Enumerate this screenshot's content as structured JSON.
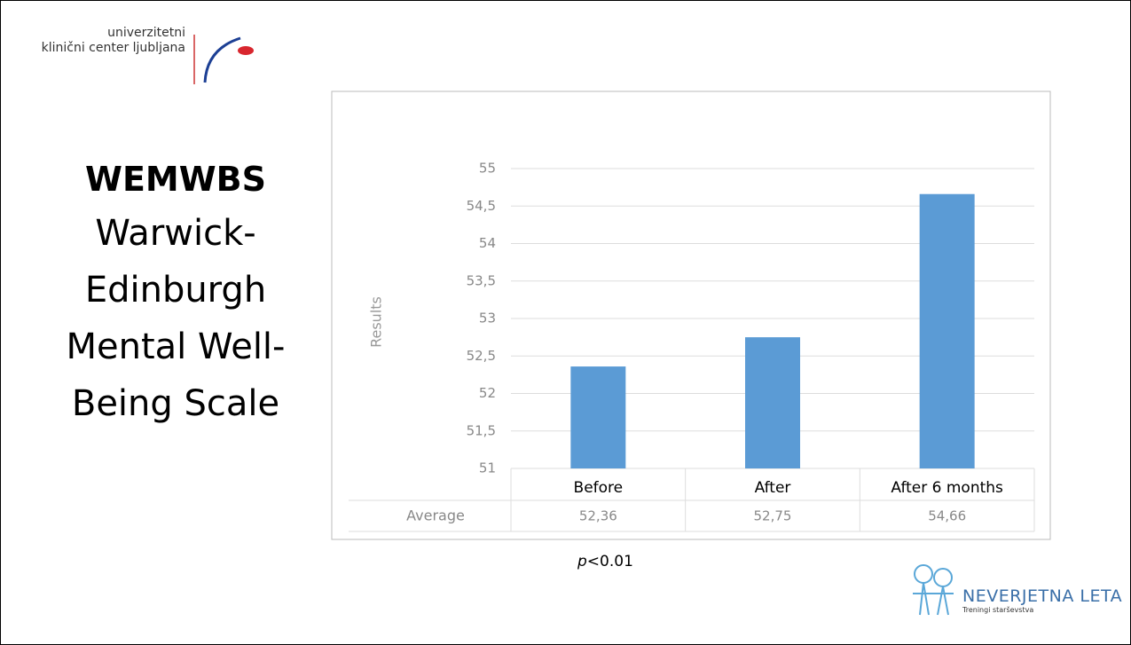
{
  "header": {
    "logo_line1": "univerzitetni",
    "logo_line2": "klinični center ljubljana"
  },
  "heading": {
    "title": "WEMWBS",
    "subtitle": "Warwick-Edinburgh Mental Well-Being Scale"
  },
  "chart_data": {
    "type": "bar",
    "y_label": "Results",
    "categories": [
      "Before",
      "After",
      "After 6 months"
    ],
    "values": [
      52.36,
      52.75,
      54.66
    ],
    "value_labels": [
      "52,36",
      "52,75",
      "54,66"
    ],
    "table_row_label": "Average",
    "color": "#5b9bd5",
    "ylim": [
      51,
      55
    ],
    "yticks": [
      51,
      {
        "value": 51.5,
        "label": "51,5"
      },
      52,
      {
        "value": 52.5,
        "label": "52,5"
      },
      53,
      {
        "value": 53.5,
        "label": "53,5"
      },
      54,
      {
        "value": 54.5,
        "label": "54,5"
      },
      55
    ],
    "grid": true
  },
  "note": {
    "italic": "p",
    "rest": "<0.01"
  },
  "footer": {
    "brand": "NEVERJETNA LETA",
    "tagline": "Treningi starševstva"
  }
}
